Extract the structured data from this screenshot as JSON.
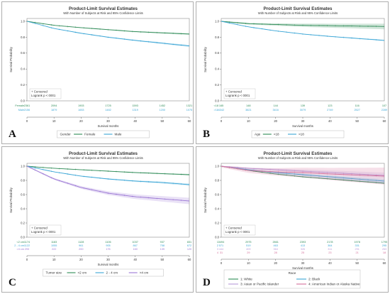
{
  "chart_data": [
    {
      "type": "line",
      "panel_label": "A",
      "title": "Product-Limit Survival Estimates",
      "subtitle": "With Number of Subjects at Risk and 95% Confidence Limits",
      "xlabel": "Survival months",
      "ylabel": "Survival Probability",
      "xlim": [
        0,
        60
      ],
      "ylim": [
        0,
        1.0
      ],
      "x_ticks": [
        0,
        10,
        20,
        30,
        40,
        50,
        60
      ],
      "y_ticks": [
        0.0,
        0.2,
        0.4,
        0.6,
        0.8,
        1.0
      ],
      "censored_label": "+ Censored",
      "annotation": "Logrank p < 0001",
      "legend_title": "Gender",
      "series": [
        {
          "name": "Female",
          "color": "#2e8b57",
          "x": [
            0,
            10,
            20,
            30,
            40,
            50,
            60
          ],
          "y": [
            1.0,
            0.95,
            0.92,
            0.895,
            0.87,
            0.855,
            0.84
          ],
          "ci": 0.01
        },
        {
          "name": "Male",
          "color": "#3ba6d6",
          "x": [
            0,
            10,
            20,
            30,
            40,
            50,
            60
          ],
          "y": [
            1.0,
            0.91,
            0.85,
            0.8,
            0.76,
            0.725,
            0.69
          ],
          "ci": 0.012
        }
      ],
      "risk_rows": [
        {
          "label": "Female",
          "color": "#2e8b57",
          "values": [
            "2361",
            "2094",
            "1903",
            "1725",
            "1593",
            "1452",
            "1321"
          ]
        },
        {
          "label": "Male",
          "color": "#3ba6d6",
          "values": [
            "2156",
            "1879",
            "1653",
            "1482",
            "1319",
            "1200",
            "1075"
          ]
        }
      ]
    },
    {
      "type": "line",
      "panel_label": "B",
      "title": "Product-Limit Survival Estimates",
      "subtitle": "With Number of Subjects at Risk and 95% Confidence Limits",
      "xlabel": "Survival months",
      "ylabel": "Survival Probability",
      "xlim": [
        0,
        60
      ],
      "ylim": [
        0,
        1.0
      ],
      "x_ticks": [
        0,
        10,
        20,
        30,
        40,
        50,
        60
      ],
      "y_ticks": [
        0.0,
        0.2,
        0.4,
        0.6,
        0.8,
        1.0
      ],
      "censored_label": "+ Censored",
      "annotation": "Logrank p < 0001",
      "legend_title": "Age",
      "series": [
        {
          "name": "<18",
          "color": "#2e8b57",
          "x": [
            0,
            10,
            20,
            30,
            40,
            50,
            60
          ],
          "y": [
            1.0,
            0.97,
            0.96,
            0.95,
            0.945,
            0.94,
            0.935
          ],
          "ci": 0.035
        },
        {
          "name": ">18",
          "color": "#3ba6d6",
          "x": [
            0,
            10,
            20,
            30,
            40,
            50,
            60
          ],
          "y": [
            1.0,
            0.93,
            0.88,
            0.84,
            0.81,
            0.785,
            0.76
          ],
          "ci": 0.008
        }
      ],
      "risk_rows": [
        {
          "label": "<18",
          "color": "#2e8b57",
          "values": [
            "165",
            "148",
            "144",
            "139",
            "123",
            "116",
            "107"
          ]
        },
        {
          "label": ">18",
          "color": "#3ba6d6",
          "values": [
            "4342",
            "3821",
            "3416",
            "3079",
            "2749",
            "2527",
            "2289"
          ]
        }
      ]
    },
    {
      "type": "line",
      "panel_label": "C",
      "title": "Product-Limit Survival Estimates",
      "subtitle": "With Number of Subjects at Risk and 95% Confidence Limits",
      "xlabel": "Survival months",
      "ylabel": "Survival Probability",
      "xlim": [
        0,
        60
      ],
      "ylim": [
        0,
        1.0
      ],
      "x_ticks": [
        0,
        10,
        20,
        30,
        40,
        50,
        60
      ],
      "y_ticks": [
        0.0,
        0.2,
        0.4,
        0.6,
        0.8,
        1.0
      ],
      "censored_label": "+ Censored",
      "annotation": "Logrank p < 0001",
      "legend_title": "Tumor size",
      "series": [
        {
          "name": "<2 cm",
          "color": "#2e8b57",
          "x": [
            0,
            10,
            20,
            30,
            40,
            50,
            60
          ],
          "y": [
            1.0,
            0.97,
            0.95,
            0.93,
            0.91,
            0.895,
            0.88
          ],
          "ci": 0.01
        },
        {
          "name": "2 - 4 cm",
          "color": "#3ba6d6",
          "x": [
            0,
            10,
            20,
            30,
            40,
            50,
            60
          ],
          "y": [
            1.0,
            0.92,
            0.86,
            0.82,
            0.79,
            0.77,
            0.74
          ],
          "ci": 0.015
        },
        {
          "name": ">4 cm",
          "color": "#9b77d4",
          "x": [
            0,
            10,
            20,
            30,
            40,
            50,
            60
          ],
          "y": [
            1.0,
            0.82,
            0.7,
            0.62,
            0.57,
            0.54,
            0.51
          ],
          "ci": 0.045
        }
      ],
      "risk_rows": [
        {
          "label": "<2 cm",
          "color": "#2e8b57",
          "values": [
            "1174",
            "1183",
            "1128",
            "1106",
            "1037",
            "937",
            "831"
          ]
        },
        {
          "label": "2 - 4 cm",
          "color": "#3ba6d6",
          "values": [
            "1122",
            "1055",
            "961",
            "905",
            "867",
            "758",
            "672"
          ]
        },
        {
          "label": ">4 cm",
          "color": "#9b77d4",
          "values": [
            "293",
            "222",
            "200",
            "176",
            "160",
            "139",
            "120"
          ]
        }
      ]
    },
    {
      "type": "line",
      "panel_label": "D",
      "title": "Product-Limit Survival Estimates",
      "subtitle": "With Number of Subjects at Risk and 95% Confidence Limits",
      "xlabel": "Survival months",
      "ylabel": "Survival Probability",
      "xlim": [
        0,
        60
      ],
      "ylim": [
        0,
        1.0
      ],
      "x_ticks": [
        0,
        10,
        20,
        30,
        40,
        50,
        60
      ],
      "y_ticks": [
        0.0,
        0.2,
        0.4,
        0.6,
        0.8,
        1.0
      ],
      "censored_label": "+ Censored",
      "annotation": "Logrank p < 0001",
      "legend_title": "Race",
      "series": [
        {
          "name": "1: White",
          "color": "#2e8b57",
          "x": [
            0,
            10,
            20,
            30,
            40,
            50,
            60
          ],
          "y": [
            1.0,
            0.94,
            0.89,
            0.85,
            0.82,
            0.79,
            0.76
          ],
          "ci": 0.01
        },
        {
          "name": "2: Black",
          "color": "#3ba6d6",
          "x": [
            0,
            10,
            20,
            30,
            40,
            50,
            60
          ],
          "y": [
            1.0,
            0.95,
            0.91,
            0.88,
            0.85,
            0.82,
            0.79
          ],
          "ci": 0.03
        },
        {
          "name": "3: Asian or Pacific Islander",
          "color": "#b79ad8",
          "x": [
            0,
            10,
            20,
            30,
            40,
            50,
            60
          ],
          "y": [
            1.0,
            0.97,
            0.95,
            0.93,
            0.91,
            0.89,
            0.87
          ],
          "ci": 0.04
        },
        {
          "name": "4: American Indian or Alaska Native",
          "color": "#d4709a",
          "x": [
            0,
            10,
            20,
            30,
            40,
            50,
            60
          ],
          "y": [
            1.0,
            0.94,
            0.92,
            0.91,
            0.89,
            0.875,
            0.86
          ],
          "ci": 0.12
        }
      ],
      "risk_rows": [
        {
          "label": "1",
          "color": "#2e8b57",
          "values": [
            "3494",
            "2975",
            "2661",
            "2393",
            "2178",
            "1978",
            "1795"
          ]
        },
        {
          "label": "2",
          "color": "#3ba6d6",
          "values": [
            "571",
            "519",
            "463",
            "413",
            "364",
            "331",
            "295"
          ]
        },
        {
          "label": "3",
          "color": "#b79ad8",
          "values": [
            "444",
            "409",
            "364",
            "326",
            "311",
            "291",
            "263"
          ]
        },
        {
          "label": "4",
          "color": "#d4709a",
          "values": [
            "31",
            "29",
            "28",
            "25",
            "23",
            "21",
            "18"
          ]
        }
      ]
    }
  ]
}
